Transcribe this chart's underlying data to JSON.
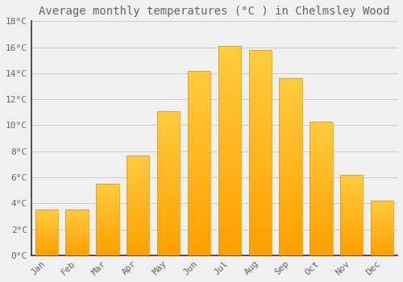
{
  "title": "Average monthly temperatures (°C ) in Chelmsley Wood",
  "months": [
    "Jan",
    "Feb",
    "Mar",
    "Apr",
    "May",
    "Jun",
    "Jul",
    "Aug",
    "Sep",
    "Oct",
    "Nov",
    "Dec"
  ],
  "values": [
    3.5,
    3.5,
    5.5,
    7.7,
    11.1,
    14.2,
    16.1,
    15.8,
    13.6,
    10.3,
    6.2,
    4.2
  ],
  "bar_color": "#FFA500",
  "bar_edge_color": "#E89000",
  "background_color": "#F0F0F0",
  "grid_color": "#CCCCCC",
  "text_color": "#666666",
  "spine_color": "#333333",
  "ylim": [
    0,
    18
  ],
  "yticks": [
    0,
    2,
    4,
    6,
    8,
    10,
    12,
    14,
    16,
    18
  ],
  "ytick_labels": [
    "0°C",
    "2°C",
    "4°C",
    "6°C",
    "8°C",
    "10°C",
    "12°C",
    "14°C",
    "16°C",
    "18°C"
  ],
  "title_fontsize": 10,
  "tick_fontsize": 8,
  "figsize": [
    5.0,
    3.5
  ],
  "dpi": 100,
  "bar_width": 0.75
}
